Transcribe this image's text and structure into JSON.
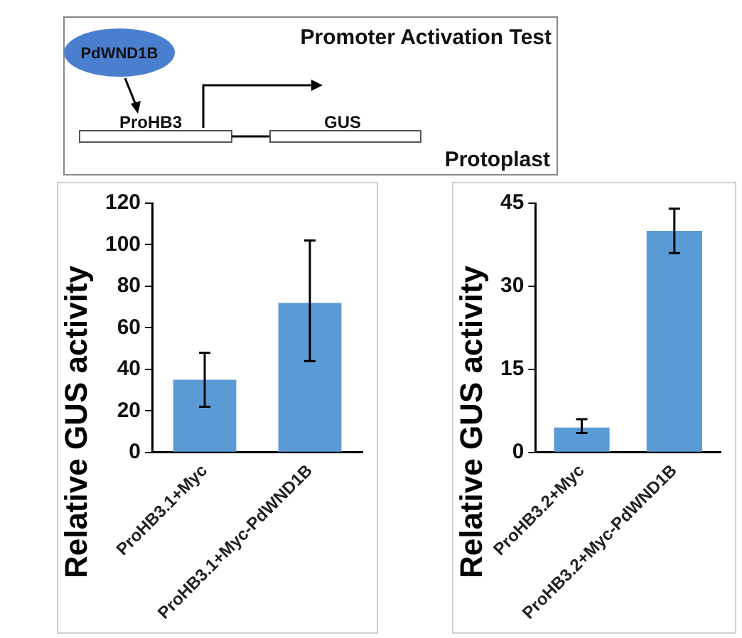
{
  "chart_data": [
    {
      "type": "other",
      "annotations": [
        "Promoter Activation Test",
        "PdWND1B",
        "ProHB3",
        "GUS",
        "Protoplast"
      ]
    },
    {
      "type": "bar",
      "ylabel": "Relative GUS activity",
      "categories": [
        "ProHB3.1+Myc",
        "ProHB3.1+Myc-PdWND1B"
      ],
      "values": [
        35,
        72
      ],
      "errors": [
        [
          22,
          48
        ],
        [
          44,
          102
        ]
      ],
      "color": "#5b9bd5",
      "ylim": [
        0,
        120
      ],
      "yticks": [
        0,
        20,
        40,
        60,
        80,
        100,
        120
      ],
      "grid": false,
      "legend": false
    },
    {
      "type": "bar",
      "ylabel": "Relative GUS activity",
      "categories": [
        "ProHB3.2+Myc",
        "ProHB3.2+Myc-PdWND1B"
      ],
      "values": [
        4.5,
        40
      ],
      "errors": [
        [
          3.5,
          6
        ],
        [
          36,
          44
        ]
      ],
      "color": "#5b9bd5",
      "ylim": [
        0,
        45
      ],
      "yticks": [
        0,
        15,
        30,
        45
      ],
      "grid": false,
      "legend": false
    }
  ]
}
